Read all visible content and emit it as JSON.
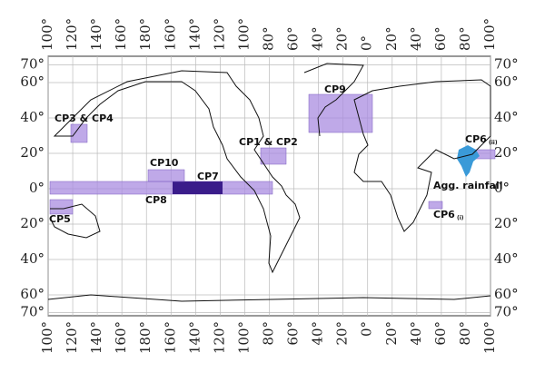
{
  "lon_ticks": [
    {
      "value": 100,
      "label": "100°"
    },
    {
      "value": 120,
      "label": "120°"
    },
    {
      "value": 140,
      "label": "140°"
    },
    {
      "value": 160,
      "label": "160°"
    },
    {
      "value": 180,
      "label": "180°"
    },
    {
      "value": -160,
      "label": "160°"
    },
    {
      "value": -140,
      "label": "140°"
    },
    {
      "value": -120,
      "label": "120°"
    },
    {
      "value": -100,
      "label": "100°"
    },
    {
      "value": -80,
      "label": "80°"
    },
    {
      "value": -60,
      "label": "60°"
    },
    {
      "value": -40,
      "label": "40°"
    },
    {
      "value": -20,
      "label": "20°"
    },
    {
      "value": 0,
      "label": "0°"
    },
    {
      "value": 20,
      "label": "20°"
    },
    {
      "value": 40,
      "label": "40°"
    },
    {
      "value": 60,
      "label": "60°"
    },
    {
      "value": 80,
      "label": "80°"
    },
    {
      "value": 100,
      "label": "100°"
    }
  ],
  "lat_ticks": [
    {
      "value": 70,
      "label": "70°"
    },
    {
      "value": 60,
      "label": "60°"
    },
    {
      "value": 40,
      "label": "40°"
    },
    {
      "value": 20,
      "label": "20°"
    },
    {
      "value": 0,
      "label": "0°"
    },
    {
      "value": -20,
      "label": "20°"
    },
    {
      "value": -40,
      "label": "40°"
    },
    {
      "value": -60,
      "label": "60°"
    },
    {
      "value": -70,
      "label": "70°"
    }
  ],
  "regions": [
    {
      "label": "CP3 & CP4"
    },
    {
      "label": "CP5"
    },
    {
      "label": "CP10"
    },
    {
      "label": "CP7"
    },
    {
      "label": "CP8"
    },
    {
      "label": "CP1 & CP2"
    },
    {
      "label": "CP9"
    },
    {
      "label": "CP6",
      "sub": "(i)"
    },
    {
      "label": "CP6",
      "sub": "(ii)"
    },
    {
      "label": "Agg. rainfall"
    }
  ]
}
